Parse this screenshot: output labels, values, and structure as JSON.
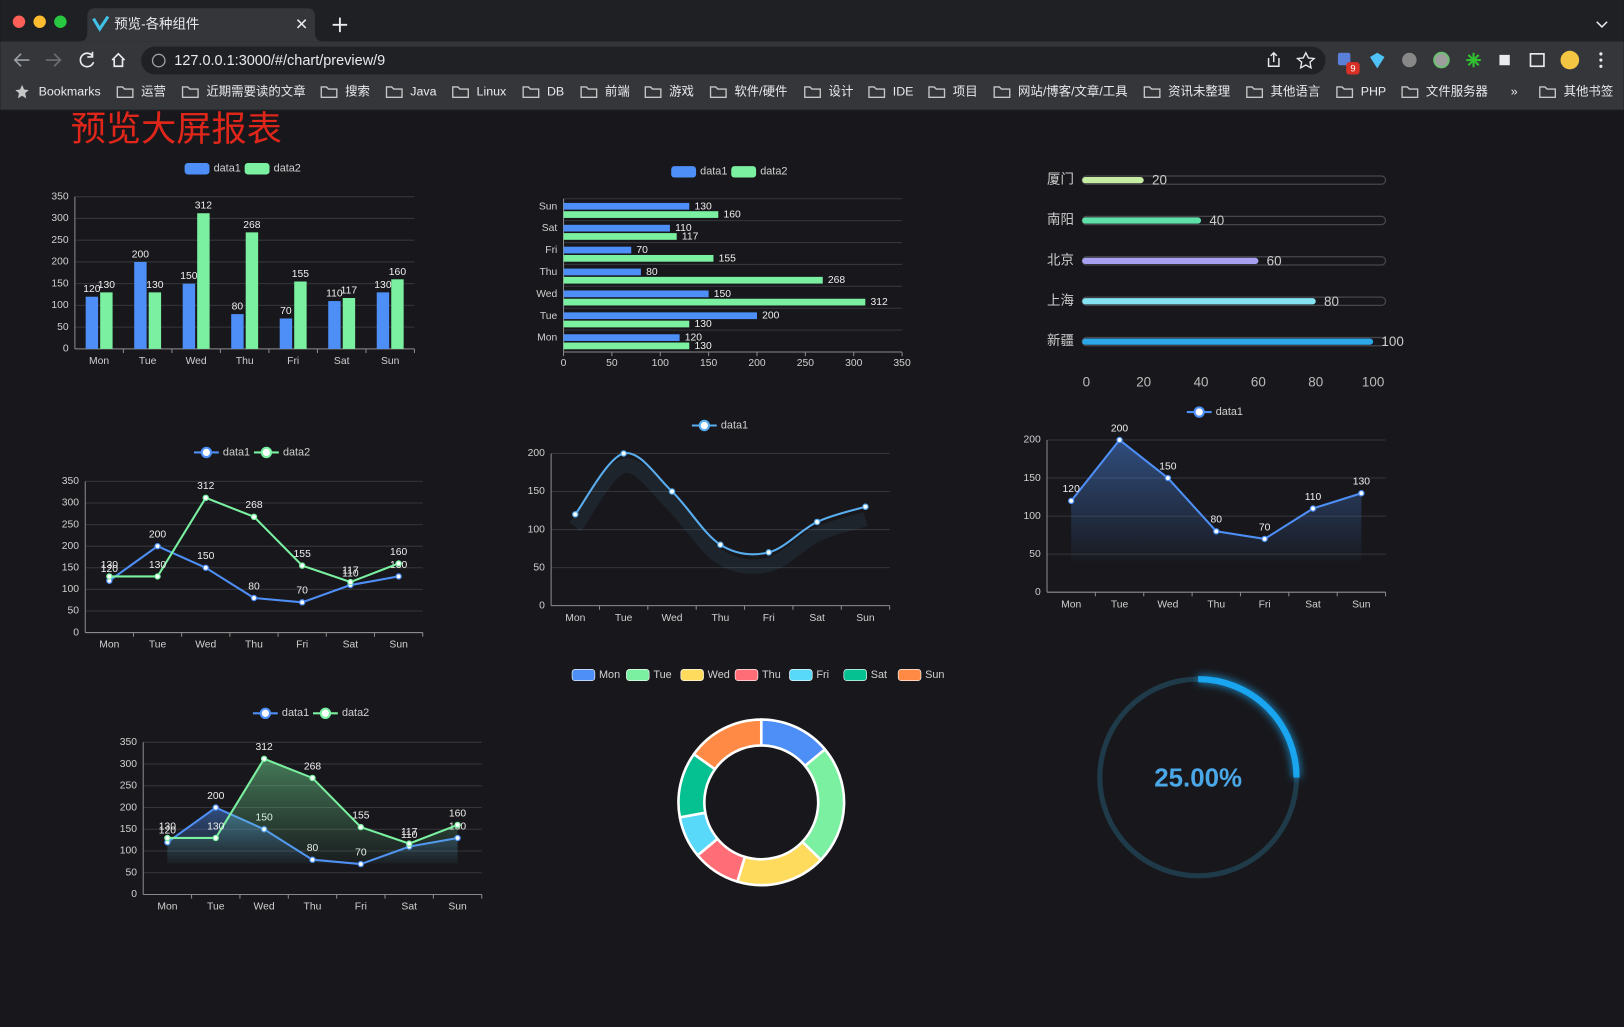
{
  "browser": {
    "tab_title": "预览-各种组件",
    "url": "127.0.0.1:3000/#/chart/preview/9",
    "extension_badge": "9",
    "bookmarks": [
      "Bookmarks",
      "运营",
      "近期需要读的文章",
      "搜索",
      "Java",
      "Linux",
      "DB",
      "前端",
      "游戏",
      "软件/硬件",
      "设计",
      "IDE",
      "项目",
      "网站/博客/文章/工具",
      "资讯未整理",
      "其他语言",
      "PHP",
      "文件服务器",
      "»",
      "其他书签"
    ]
  },
  "page_title": "预览大屏报表",
  "charts": [
    {
      "type": "bar",
      "categories": [
        "Mon",
        "Tue",
        "Wed",
        "Thu",
        "Fri",
        "Sat",
        "Sun"
      ],
      "series": [
        {
          "name": "data1",
          "color": "#4e8ff7",
          "values": [
            120,
            200,
            150,
            80,
            70,
            110,
            130
          ]
        },
        {
          "name": "data2",
          "color": "#7af0a0",
          "values": [
            130,
            130,
            312,
            268,
            155,
            117,
            160
          ]
        }
      ],
      "ylim": [
        0,
        350
      ],
      "yticks": [
        0,
        50,
        100,
        150,
        200,
        250,
        300,
        350
      ],
      "grid": true,
      "show_values": true
    },
    {
      "type": "hbar",
      "categories": [
        "Mon",
        "Tue",
        "Wed",
        "Thu",
        "Fri",
        "Sat",
        "Sun"
      ],
      "series": [
        {
          "name": "data1",
          "color": "#4e8ff7",
          "values": [
            120,
            200,
            150,
            80,
            70,
            110,
            130
          ]
        },
        {
          "name": "data2",
          "color": "#7af0a0",
          "values": [
            130,
            130,
            312,
            268,
            155,
            117,
            160
          ]
        }
      ],
      "xlim": [
        0,
        350
      ],
      "xticks": [
        0,
        50,
        100,
        150,
        200,
        250,
        300,
        350
      ],
      "grid": true,
      "show_values": true
    },
    {
      "type": "progress",
      "categories": [
        "厦门",
        "南阳",
        "北京",
        "上海",
        "新疆"
      ],
      "values": [
        20,
        40,
        60,
        80,
        100
      ],
      "colors": [
        "#c6eca4",
        "#5ee0a8",
        "#a8a0f0",
        "#84e4f2",
        "#2ca7e8"
      ],
      "xlim": [
        0,
        100
      ],
      "xticks": [
        0,
        20,
        40,
        60,
        80,
        100
      ]
    },
    {
      "type": "line",
      "categories": [
        "Mon",
        "Tue",
        "Wed",
        "Thu",
        "Fri",
        "Sat",
        "Sun"
      ],
      "series": [
        {
          "name": "data1",
          "color": "#4e8ff7",
          "values": [
            120,
            200,
            150,
            80,
            70,
            110,
            130
          ]
        },
        {
          "name": "data2",
          "color": "#7af0a0",
          "values": [
            130,
            130,
            312,
            268,
            155,
            117,
            160
          ]
        }
      ],
      "ylim": [
        0,
        350
      ],
      "yticks": [
        0,
        50,
        100,
        150,
        200,
        250,
        300,
        350
      ],
      "grid": true,
      "show_values": true
    },
    {
      "type": "line",
      "smooth": true,
      "categories": [
        "Mon",
        "Tue",
        "Wed",
        "Thu",
        "Fri",
        "Sat",
        "Sun"
      ],
      "series": [
        {
          "name": "data1",
          "color": "#5aaef0",
          "values": [
            120,
            200,
            150,
            80,
            70,
            110,
            130
          ]
        }
      ],
      "ylim": [
        0,
        200
      ],
      "yticks": [
        0,
        50,
        100,
        150,
        200
      ],
      "grid": true,
      "show_values": false
    },
    {
      "type": "line",
      "area": true,
      "categories": [
        "Mon",
        "Tue",
        "Wed",
        "Thu",
        "Fri",
        "Sat",
        "Sun"
      ],
      "series": [
        {
          "name": "data1",
          "color": "#4e8ff7",
          "values": [
            120,
            200,
            150,
            80,
            70,
            110,
            130
          ]
        }
      ],
      "ylim": [
        0,
        200
      ],
      "yticks": [
        0,
        50,
        100,
        150,
        200
      ],
      "grid": true,
      "show_values": true
    },
    {
      "type": "line",
      "area": true,
      "categories": [
        "Mon",
        "Tue",
        "Wed",
        "Thu",
        "Fri",
        "Sat",
        "Sun"
      ],
      "series": [
        {
          "name": "data1",
          "color": "#4e8ff7",
          "values": [
            120,
            200,
            150,
            80,
            70,
            110,
            130
          ]
        },
        {
          "name": "data2",
          "color": "#7af0a0",
          "values": [
            130,
            130,
            312,
            268,
            155,
            117,
            160
          ]
        }
      ],
      "ylim": [
        0,
        350
      ],
      "yticks": [
        0,
        50,
        100,
        150,
        200,
        250,
        300,
        350
      ],
      "grid": true,
      "show_values": true
    },
    {
      "type": "donut",
      "categories": [
        "Mon",
        "Tue",
        "Wed",
        "Thu",
        "Fri",
        "Sat",
        "Sun"
      ],
      "values": [
        120,
        200,
        150,
        80,
        70,
        110,
        130
      ],
      "colors": [
        "#4e8ff7",
        "#7af0a0",
        "#fedb5c",
        "#ff6e76",
        "#58d9f9",
        "#05c091",
        "#ff8a45"
      ]
    },
    {
      "type": "gauge",
      "value": 25,
      "value_label": "25.00%",
      "color": "#1aa5f0"
    }
  ]
}
